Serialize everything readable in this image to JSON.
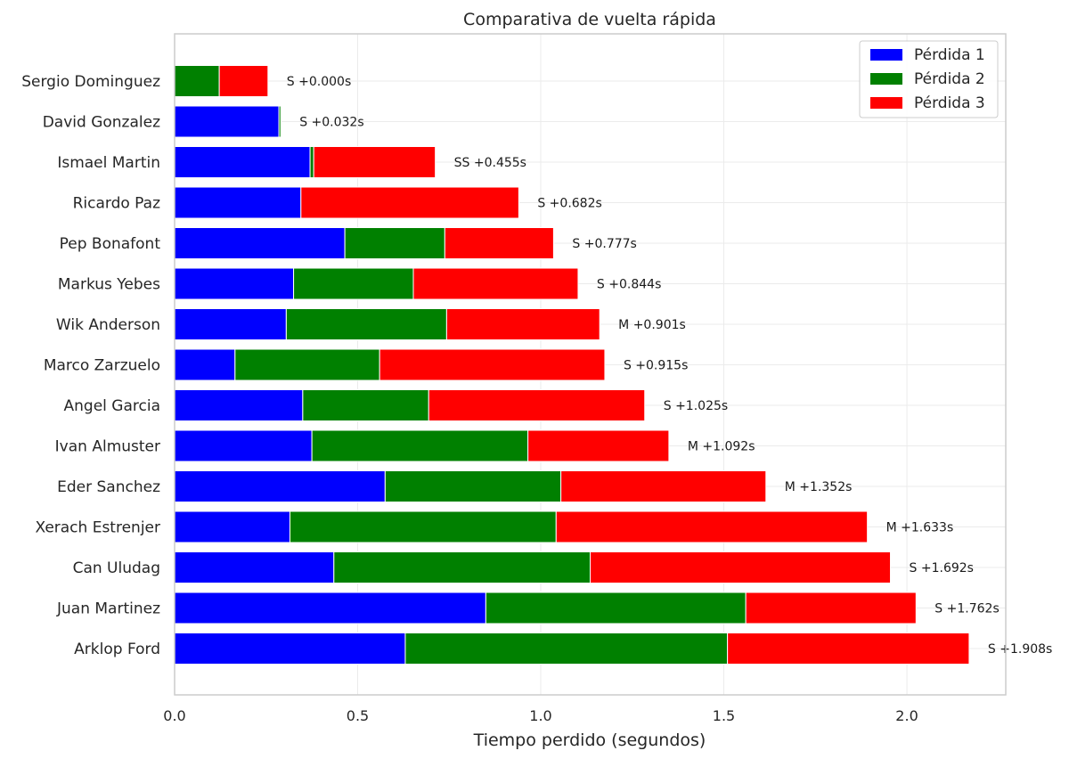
{
  "chart_data": {
    "type": "bar",
    "orientation": "horizontal",
    "stacked": true,
    "title": "Comparativa de vuelta rápida",
    "xlabel": "Tiempo perdido (segundos)",
    "ylabel": "",
    "xlim": [
      0,
      2.27
    ],
    "xticks": [
      "0.0",
      "0.5",
      "1.0",
      "1.5",
      "2.0"
    ],
    "xtick_values": [
      0,
      0.5,
      1.0,
      1.5,
      2.0
    ],
    "grid": true,
    "legend_position": "top-right",
    "categories": [
      "Sergio Dominguez",
      "David Gonzalez",
      "Ismael Martin",
      "Ricardo Paz",
      "Pep Bonafont",
      "Markus Yebes",
      "Wik Anderson",
      "Marco Zarzuelo",
      "Angel Garcia",
      "Ivan Almuster",
      "Eder Sanchez",
      "Xerach Estrenjer",
      "Can Uludag",
      "Juan Martinez",
      "Arklop Ford"
    ],
    "series": [
      {
        "name": "Pérdida 1",
        "color": "#0000ff",
        "values": [
          0.0,
          0.285,
          0.37,
          0.345,
          0.465,
          0.325,
          0.305,
          0.165,
          0.35,
          0.375,
          0.575,
          0.315,
          0.435,
          0.85,
          0.63
        ]
      },
      {
        "name": "Pérdida 2",
        "color": "#008000",
        "values": [
          0.122,
          0.005,
          0.01,
          0.0,
          0.273,
          0.327,
          0.438,
          0.395,
          0.344,
          0.59,
          0.48,
          0.727,
          0.7,
          0.71,
          0.88
        ]
      },
      {
        "name": "Pérdida 3",
        "color": "#ff0000",
        "values": [
          0.133,
          0.0,
          0.332,
          0.595,
          0.297,
          0.45,
          0.418,
          0.615,
          0.59,
          0.385,
          0.56,
          0.85,
          0.82,
          0.465,
          0.66
        ]
      }
    ],
    "annotations": [
      "S  +0.000s",
      "S  +0.032s",
      "SS  +0.455s",
      "S  +0.682s",
      "S  +0.777s",
      "S  +0.844s",
      "M  +0.901s",
      "S  +0.915s",
      "S  +1.025s",
      "M  +1.092s",
      "M  +1.352s",
      "M  +1.633s",
      "S  +1.692s",
      "S  +1.762s",
      "S  +1.908s"
    ]
  }
}
